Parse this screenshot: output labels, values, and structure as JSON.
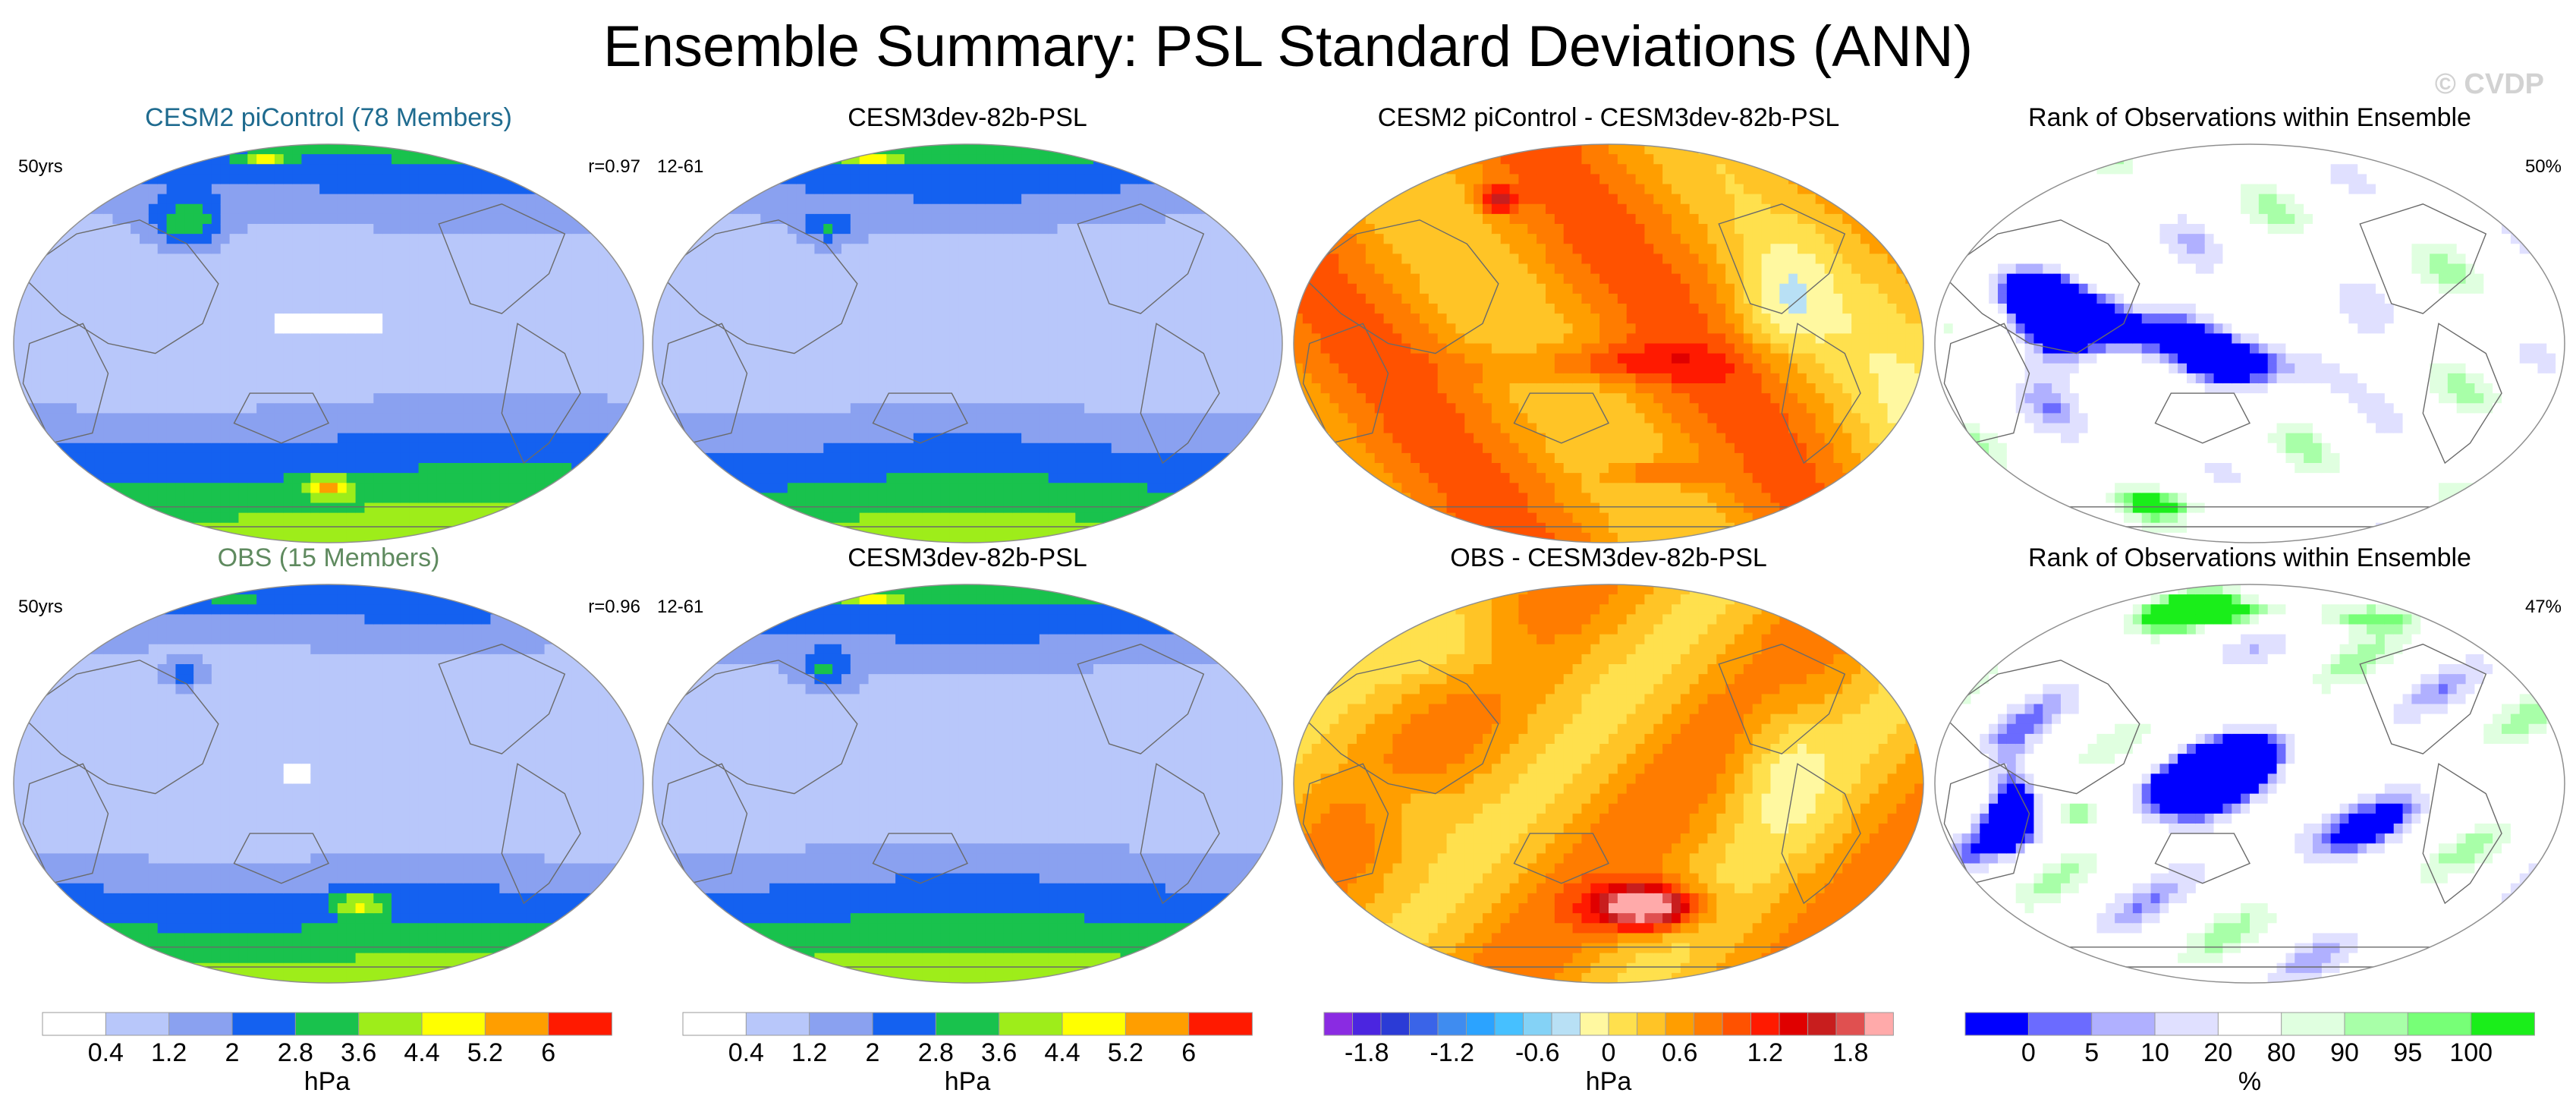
{
  "title": "Ensemble Summary: PSL Standard Deviations (ANN)",
  "watermark": "© CVDP",
  "colors": {
    "model_blue_title": "#1f6b8f",
    "obs_green_title": "#5f8a5f",
    "sd_scale": [
      "#ffffff",
      "#b8c7fa",
      "#8aa1f0",
      "#1461f0",
      "#19c24d",
      "#9eed1a",
      "#ffff00",
      "#ff9e00",
      "#ff1a00"
    ],
    "diff_scale": [
      "#8a2be2",
      "#4b25e0",
      "#2b3bd6",
      "#3a64e8",
      "#3f8cf0",
      "#2ba3ff",
      "#46c0ff",
      "#84d2f6",
      "#b8e0f5",
      "#fff8a0",
      "#ffe04d",
      "#ffc426",
      "#ff9e00",
      "#ff7c00",
      "#ff5200",
      "#ff1a00",
      "#e00000",
      "#c81e1e",
      "#e05050",
      "#ffaaaa"
    ],
    "rank_scale": [
      "#0000ff",
      "#6b6bff",
      "#b0b0ff",
      "#e0e0ff",
      "#ffffff",
      "#e0ffe0",
      "#a8ffa8",
      "#77ff77",
      "#1aee1a"
    ]
  },
  "chart_data": [
    {
      "type": "heatmap",
      "title": "CESM2 piControl (78 Members)",
      "title_color": "#1f6b8f",
      "left_label": "50yrs",
      "right_label": "r=0.97",
      "scale": "sd",
      "field": "sd_model"
    },
    {
      "type": "heatmap",
      "title": "CESM3dev-82b-PSL",
      "left_label": "12-61",
      "right_label": "",
      "scale": "sd",
      "field": "sd_test"
    },
    {
      "type": "heatmap",
      "title": "CESM2 piControl - CESM3dev-82b-PSL",
      "left_label": "",
      "right_label": "",
      "scale": "diff",
      "field": "diff_model"
    },
    {
      "type": "heatmap",
      "title": "Rank of Observations within Ensemble",
      "left_label": "",
      "right_label": "50%",
      "scale": "rank",
      "field": "rank_model"
    },
    {
      "type": "heatmap",
      "title": "OBS (15 Members)",
      "title_color": "#5f8a5f",
      "left_label": "50yrs",
      "right_label": "r=0.96",
      "scale": "sd",
      "field": "sd_obs"
    },
    {
      "type": "heatmap",
      "title": "CESM3dev-82b-PSL",
      "left_label": "12-61",
      "right_label": "",
      "scale": "sd",
      "field": "sd_test2"
    },
    {
      "type": "heatmap",
      "title": "OBS - CESM3dev-82b-PSL",
      "left_label": "",
      "right_label": "",
      "scale": "diff",
      "field": "diff_obs"
    },
    {
      "type": "heatmap",
      "title": "Rank of Observations within Ensemble",
      "left_label": "",
      "right_label": "47%",
      "scale": "rank",
      "field": "rank_obs"
    }
  ],
  "colorbars": [
    {
      "name": "sd",
      "unit": "hPa",
      "levels": [
        0.4,
        1.2,
        2,
        2.8,
        3.6,
        4.4,
        5.2,
        6
      ],
      "tick_labels": [
        "0.4",
        "1.2",
        "2",
        "2.8",
        "3.6",
        "4.4",
        "5.2",
        "6"
      ]
    },
    {
      "name": "sd",
      "unit": "hPa",
      "levels": [
        0.4,
        1.2,
        2,
        2.8,
        3.6,
        4.4,
        5.2,
        6
      ],
      "tick_labels": [
        "0.4",
        "1.2",
        "2",
        "2.8",
        "3.6",
        "4.4",
        "5.2",
        "6"
      ]
    },
    {
      "name": "diff",
      "unit": "hPa",
      "levels": [
        -1.8,
        -1.2,
        -0.6,
        0,
        0.6,
        1.2,
        1.8
      ],
      "tick_labels": [
        "-1.8",
        "-1.2",
        "-0.6",
        "0",
        "0.6",
        "1.2",
        "1.8"
      ]
    },
    {
      "name": "rank",
      "unit": "%",
      "levels": [
        0,
        5,
        10,
        20,
        80,
        90,
        95,
        100
      ],
      "tick_labels": [
        "0",
        "5",
        "10",
        "20",
        "80",
        "90",
        "95",
        "100"
      ]
    }
  ]
}
